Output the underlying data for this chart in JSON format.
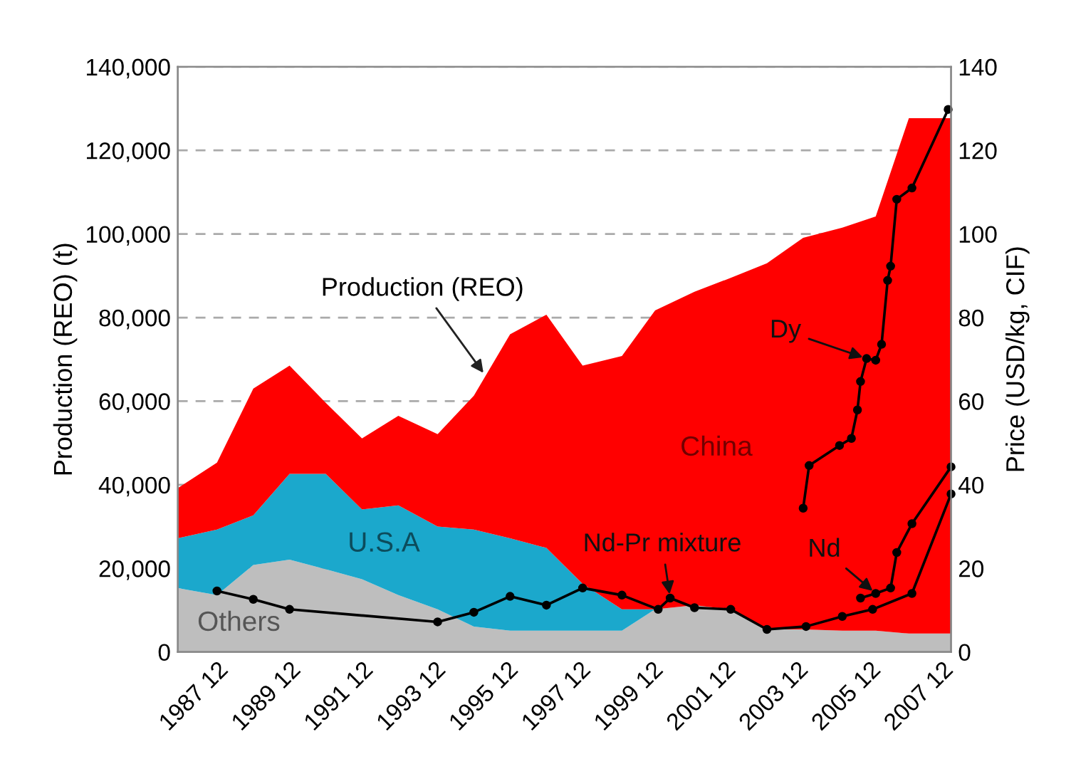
{
  "chart_data": {
    "type": "area",
    "stacked": true,
    "ylabel": "Production (REO) (t)",
    "y2label": "Price (USD/kg, CIF)",
    "xlim": [
      "1986-11",
      "2008-03"
    ],
    "ylim": [
      0,
      140000
    ],
    "y2lim": [
      0,
      140
    ],
    "xticks": [
      {
        "value": "1987-12",
        "label": "1987 12"
      },
      {
        "value": "1988-12",
        "label": null
      },
      {
        "value": "1989-12",
        "label": "1989 12"
      },
      {
        "value": "1990-12",
        "label": null
      },
      {
        "value": "1991-12",
        "label": "1991 12"
      },
      {
        "value": "1992-12",
        "label": null
      },
      {
        "value": "1993-12",
        "label": "1993 12"
      },
      {
        "value": "1994-12",
        "label": null
      },
      {
        "value": "1995-12",
        "label": "1995 12"
      },
      {
        "value": "1996-12",
        "label": null
      },
      {
        "value": "1997-12",
        "label": "1997 12"
      },
      {
        "value": "1998-12",
        "label": null
      },
      {
        "value": "1999-12",
        "label": "1999 12"
      },
      {
        "value": "2000-12",
        "label": null
      },
      {
        "value": "2001-12",
        "label": "2001 12"
      },
      {
        "value": "2002-12",
        "label": null
      },
      {
        "value": "2003-12",
        "label": "2003 12"
      },
      {
        "value": "2004-12",
        "label": null
      },
      {
        "value": "2005-12",
        "label": "2005 12"
      },
      {
        "value": "2006-12",
        "label": null
      },
      {
        "value": "2007-12",
        "label": "2007 12"
      }
    ],
    "yticks": [
      0,
      {
        "value": 20000,
        "label": "20,000"
      },
      {
        "value": 40000,
        "label": "40,000"
      },
      {
        "value": 60000,
        "label": "60,000"
      },
      {
        "value": 80000,
        "label": "80,000"
      },
      {
        "value": 100000,
        "label": "100,000"
      },
      {
        "value": 120000,
        "label": "120,000"
      },
      {
        "value": 140000,
        "label": "140,000"
      }
    ],
    "y2ticks": [
      0,
      20,
      40,
      60,
      80,
      100,
      120,
      140
    ],
    "grid": "y",
    "legend": false,
    "x": [
      "1986-11",
      "1987-12",
      "1988-12",
      "1989-12",
      "1990-12",
      "1991-12",
      "1992-12",
      "1994-01",
      "1995-01",
      "1996-01",
      "1997-01",
      "1998-01",
      "1999-02",
      "2000-01",
      "2001-02",
      "2002-02",
      "2003-02",
      "2004-02",
      "2005-03",
      "2006-02",
      "2007-01",
      "2008-03"
    ],
    "series": [
      {
        "name": "Others",
        "color": "#bebebe",
        "values": [
          15300,
          13600,
          20800,
          22100,
          19800,
          17400,
          13600,
          10200,
          6100,
          5100,
          5100,
          5100,
          5100,
          10200,
          11200,
          10200,
          5400,
          5400,
          5100,
          5100,
          4400,
          4400
        ]
      },
      {
        "name": "U.S.A",
        "color": "#1ba8cc",
        "values": [
          11900,
          15700,
          11900,
          20500,
          22800,
          16700,
          21500,
          19800,
          23200,
          22100,
          19800,
          11200,
          5100,
          0,
          0,
          0,
          0,
          0,
          0,
          0,
          0,
          0
        ]
      },
      {
        "name": "China",
        "color": "#ff0000",
        "values": [
          12000,
          16000,
          30300,
          25900,
          17000,
          17000,
          21400,
          22100,
          32000,
          48800,
          55800,
          52200,
          60600,
          71500,
          75000,
          79300,
          87600,
          93700,
          96400,
          99100,
          123300,
          123300
        ]
      },
      {
        "name": "Dy",
        "type": "line",
        "marker": "circle",
        "axis": "y2",
        "color": "#000000",
        "x": [
          "2004-02",
          "2004-04",
          "2005-02",
          "2005-06",
          "2005-08",
          "2005-09",
          "2005-11",
          "2006-02",
          "2006-04",
          "2006-06",
          "2006-07",
          "2006-09",
          "2007-02",
          "2008-02"
        ],
        "values": [
          34.4,
          44.6,
          49.4,
          51.1,
          57.9,
          64.7,
          70.2,
          69.8,
          73.6,
          88.9,
          92.3,
          108.3,
          111.0,
          129.8
        ]
      },
      {
        "name": "Nd",
        "type": "line",
        "marker": "circle",
        "axis": "y2",
        "color": "#000000",
        "x": [
          "2005-09",
          "2006-02",
          "2006-07",
          "2006-09",
          "2007-02",
          "2008-03"
        ],
        "values": [
          12.9,
          14.0,
          15.3,
          23.8,
          30.7,
          44.3
        ]
      },
      {
        "name": "Nd-Pr mixture",
        "type": "line",
        "marker": "circle",
        "axis": "y2",
        "color": "#000000",
        "x": [
          "1987-12",
          "1988-12",
          "1989-12",
          "1994-01",
          "1995-01",
          "1996-01",
          "1997-01",
          "1998-01",
          "1999-02",
          "2000-02",
          "2000-06",
          "2001-02",
          "2002-02",
          "2003-02",
          "2004-03",
          "2005-03",
          "2006-01",
          "2007-02",
          "2008-03"
        ],
        "values": [
          14.6,
          12.6,
          10.2,
          7.2,
          9.5,
          13.3,
          11.2,
          15.3,
          13.6,
          10.2,
          12.9,
          10.6,
          10.2,
          5.4,
          6.1,
          8.5,
          10.2,
          14.0,
          37.8
        ]
      }
    ],
    "annotations": [
      {
        "text": "Production (REO)",
        "x": "1995-05",
        "y": 66000
      }
    ]
  }
}
